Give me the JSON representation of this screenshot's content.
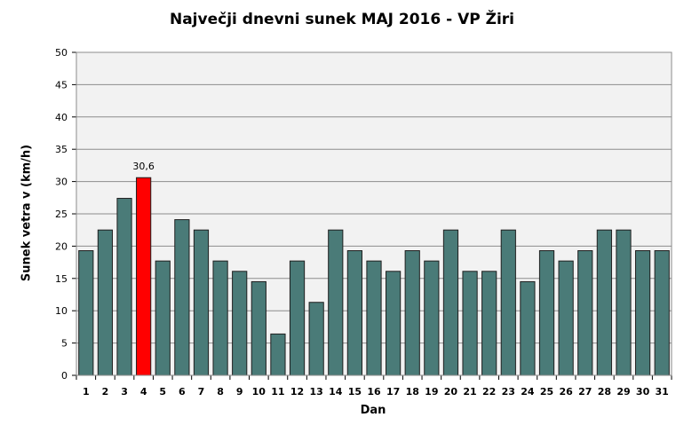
{
  "chart_data": {
    "type": "bar",
    "title": "Največji dnevni sunek MAJ 2016 - VP Žiri",
    "xlabel": "Dan",
    "ylabel": "Sunek vetra  v (km/h)",
    "ylim": [
      0,
      50
    ],
    "yticks": [
      "0",
      "5",
      "10",
      "15",
      "20",
      "25",
      "30",
      "35",
      "40",
      "45",
      "50"
    ],
    "grid": true,
    "legend": "none",
    "categories": [
      "1",
      "2",
      "3",
      "4",
      "5",
      "6",
      "7",
      "8",
      "9",
      "10",
      "11",
      "12",
      "13",
      "14",
      "15",
      "16",
      "17",
      "18",
      "19",
      "20",
      "21",
      "22",
      "23",
      "24",
      "25",
      "26",
      "27",
      "28",
      "29",
      "30",
      "31"
    ],
    "values": [
      19.3,
      22.5,
      27.4,
      30.6,
      17.7,
      24.1,
      22.5,
      17.7,
      16.1,
      14.5,
      6.4,
      17.7,
      11.3,
      22.5,
      19.3,
      17.7,
      16.1,
      19.3,
      17.7,
      22.5,
      16.1,
      16.1,
      22.5,
      14.5,
      19.3,
      17.7,
      19.3,
      22.5,
      22.5,
      19.3,
      19.3
    ],
    "highlight_index": 3,
    "data_labels": [
      {
        "index": 3,
        "text": "30,6"
      }
    ],
    "colors": {
      "bar": "#4a7b78",
      "highlight": "#ff0000",
      "plot_background": "#f2f2f2",
      "grid": "#8c8c8c"
    }
  }
}
